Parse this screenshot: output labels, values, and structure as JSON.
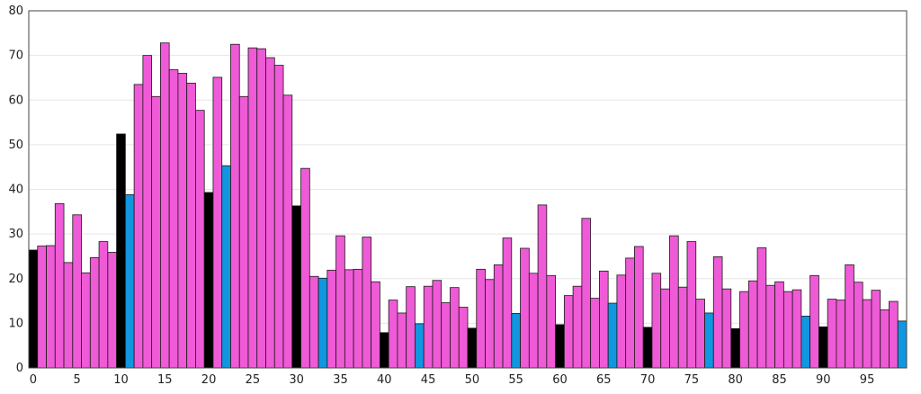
{
  "chart_data": {
    "type": "bar",
    "title": "",
    "xlabel": "",
    "ylabel": "",
    "ylim": [
      0,
      80
    ],
    "xlim": [
      0,
      100
    ],
    "y_ticks": [
      0,
      10,
      20,
      30,
      40,
      50,
      60,
      70,
      80
    ],
    "x_ticks": [
      0,
      5,
      10,
      15,
      20,
      25,
      30,
      35,
      40,
      45,
      50,
      55,
      60,
      65,
      70,
      75,
      80,
      85,
      90,
      95
    ],
    "grid": "horizontal",
    "legend": "none",
    "colors": {
      "default": "#ef5ad6",
      "every_10th": "#000000",
      "highlight": "#1196df"
    },
    "x": [
      0,
      1,
      2,
      3,
      4,
      5,
      6,
      7,
      8,
      9,
      10,
      11,
      12,
      13,
      14,
      15,
      16,
      17,
      18,
      19,
      20,
      21,
      22,
      23,
      24,
      25,
      26,
      27,
      28,
      29,
      30,
      31,
      32,
      33,
      34,
      35,
      36,
      37,
      38,
      39,
      40,
      41,
      42,
      43,
      44,
      45,
      46,
      47,
      48,
      49,
      50,
      51,
      52,
      53,
      54,
      55,
      56,
      57,
      58,
      59,
      60,
      61,
      62,
      63,
      64,
      65,
      66,
      67,
      68,
      69,
      70,
      71,
      72,
      73,
      74,
      75,
      76,
      77,
      78,
      79,
      80,
      81,
      82,
      83,
      84,
      85,
      86,
      87,
      88,
      89,
      90,
      91,
      92,
      93,
      94,
      95,
      96,
      97,
      98,
      99
    ],
    "values": [
      26.4,
      27.3,
      27.4,
      36.8,
      23.6,
      34.3,
      21.3,
      24.7,
      28.3,
      25.9,
      52.4,
      38.8,
      63.5,
      70.0,
      60.8,
      72.8,
      66.8,
      66.0,
      63.8,
      57.7,
      39.3,
      65.1,
      45.3,
      72.5,
      60.8,
      71.7,
      71.5,
      69.5,
      67.8,
      61.1,
      36.3,
      44.7,
      20.5,
      20.1,
      21.9,
      29.6,
      22.0,
      22.1,
      29.3,
      19.3,
      7.9,
      15.2,
      12.3,
      18.2,
      9.9,
      18.3,
      19.6,
      14.6,
      18.0,
      13.6,
      8.9,
      22.1,
      19.8,
      23.1,
      29.1,
      12.2,
      26.8,
      21.2,
      36.5,
      20.7,
      9.7,
      16.2,
      18.3,
      33.5,
      15.6,
      21.7,
      14.5,
      20.8,
      24.6,
      27.2,
      9.1,
      21.2,
      17.7,
      29.6,
      18.1,
      28.3,
      15.4,
      12.3,
      24.9,
      17.7,
      8.8,
      17.1,
      19.5,
      26.9,
      18.5,
      19.3,
      17.1,
      17.5,
      11.6,
      20.7,
      9.2,
      15.4,
      15.2,
      23.1,
      19.2,
      15.3,
      17.4,
      13.0,
      14.9,
      10.5
    ],
    "bar_colors": [
      "#000000",
      "#ef5ad6",
      "#ef5ad6",
      "#ef5ad6",
      "#ef5ad6",
      "#ef5ad6",
      "#ef5ad6",
      "#ef5ad6",
      "#ef5ad6",
      "#ef5ad6",
      "#000000",
      "#1196df",
      "#ef5ad6",
      "#ef5ad6",
      "#ef5ad6",
      "#ef5ad6",
      "#ef5ad6",
      "#ef5ad6",
      "#ef5ad6",
      "#ef5ad6",
      "#000000",
      "#ef5ad6",
      "#1196df",
      "#ef5ad6",
      "#ef5ad6",
      "#ef5ad6",
      "#ef5ad6",
      "#ef5ad6",
      "#ef5ad6",
      "#ef5ad6",
      "#000000",
      "#ef5ad6",
      "#ef5ad6",
      "#1196df",
      "#ef5ad6",
      "#ef5ad6",
      "#ef5ad6",
      "#ef5ad6",
      "#ef5ad6",
      "#ef5ad6",
      "#000000",
      "#ef5ad6",
      "#ef5ad6",
      "#ef5ad6",
      "#1196df",
      "#ef5ad6",
      "#ef5ad6",
      "#ef5ad6",
      "#ef5ad6",
      "#ef5ad6",
      "#000000",
      "#ef5ad6",
      "#ef5ad6",
      "#ef5ad6",
      "#ef5ad6",
      "#1196df",
      "#ef5ad6",
      "#ef5ad6",
      "#ef5ad6",
      "#ef5ad6",
      "#000000",
      "#ef5ad6",
      "#ef5ad6",
      "#ef5ad6",
      "#ef5ad6",
      "#ef5ad6",
      "#1196df",
      "#ef5ad6",
      "#ef5ad6",
      "#ef5ad6",
      "#000000",
      "#ef5ad6",
      "#ef5ad6",
      "#ef5ad6",
      "#ef5ad6",
      "#ef5ad6",
      "#ef5ad6",
      "#1196df",
      "#ef5ad6",
      "#ef5ad6",
      "#000000",
      "#ef5ad6",
      "#ef5ad6",
      "#ef5ad6",
      "#ef5ad6",
      "#ef5ad6",
      "#ef5ad6",
      "#ef5ad6",
      "#1196df",
      "#ef5ad6",
      "#000000",
      "#ef5ad6",
      "#ef5ad6",
      "#ef5ad6",
      "#ef5ad6",
      "#ef5ad6",
      "#ef5ad6",
      "#ef5ad6",
      "#ef5ad6",
      "#1196df"
    ]
  }
}
